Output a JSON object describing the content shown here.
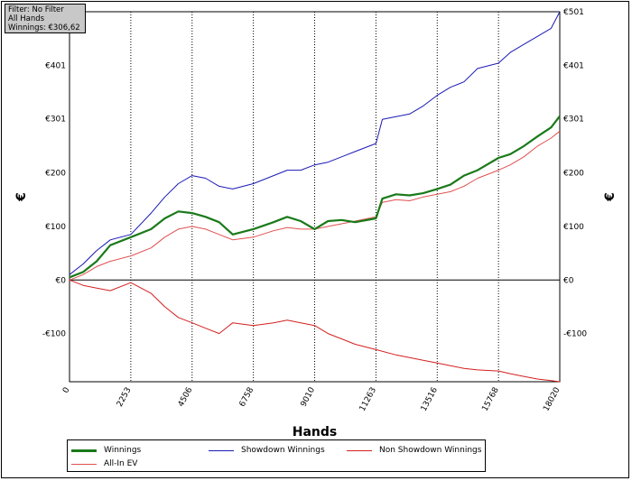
{
  "info_box": {
    "filter": "Filter: No Filter",
    "hands": "All Hands",
    "winnings": "Winnings: €306,62"
  },
  "chart_data": {
    "type": "line",
    "xlabel": "Hands",
    "ylabel_left": "€",
    "ylabel_right": "€",
    "xlim": [
      0,
      18020
    ],
    "ylim": [
      -190,
      501
    ],
    "x_ticks": [
      0,
      2253,
      4506,
      6758,
      9010,
      11263,
      13516,
      15768,
      18020
    ],
    "y_ticks": [
      {
        "value": 0,
        "label": "€0"
      },
      {
        "value": 100,
        "label": "€100"
      },
      {
        "value": 200,
        "label": "€200"
      },
      {
        "value": 301,
        "label": "€301"
      },
      {
        "value": 401,
        "label": "€401"
      },
      {
        "value": 501,
        "label": "€501"
      },
      {
        "value": -100,
        "label": "-€100"
      }
    ],
    "grid": "vertical dotted",
    "zero_line": true,
    "legend_position": "bottom",
    "series": [
      {
        "name": "Winnings",
        "color": "#1a7a1a",
        "width": 2.2,
        "x": [
          0,
          500,
          1000,
          1500,
          2253,
          3000,
          3500,
          4000,
          4506,
          5000,
          5500,
          6000,
          6758,
          7500,
          8000,
          8500,
          9010,
          9500,
          10000,
          10500,
          11263,
          11500,
          12000,
          12500,
          13000,
          13516,
          14000,
          14500,
          15000,
          15768,
          16200,
          16700,
          17200,
          17700,
          18020
        ],
        "y": [
          5,
          15,
          35,
          65,
          80,
          95,
          115,
          128,
          125,
          118,
          108,
          85,
          95,
          108,
          118,
          110,
          95,
          110,
          112,
          108,
          115,
          152,
          160,
          158,
          162,
          170,
          178,
          195,
          205,
          228,
          235,
          250,
          268,
          285,
          306
        ]
      },
      {
        "name": "Showdown Winnings",
        "color": "#1a1ab4",
        "width": 1,
        "x": [
          0,
          500,
          1000,
          1500,
          2253,
          3000,
          3500,
          4000,
          4506,
          5000,
          5500,
          6000,
          6758,
          7500,
          8000,
          8500,
          9010,
          9500,
          10000,
          10500,
          11263,
          11500,
          12000,
          12500,
          13000,
          13516,
          14000,
          14500,
          15000,
          15768,
          16200,
          16700,
          17200,
          17700,
          18020
        ],
        "y": [
          10,
          30,
          55,
          75,
          85,
          125,
          155,
          180,
          195,
          190,
          175,
          170,
          180,
          195,
          205,
          205,
          215,
          220,
          230,
          240,
          255,
          300,
          305,
          310,
          325,
          345,
          360,
          370,
          395,
          405,
          425,
          440,
          455,
          470,
          501
        ]
      },
      {
        "name": "Non Showdown Winnings",
        "color": "#d42020",
        "width": 1,
        "x": [
          0,
          500,
          1000,
          1500,
          2253,
          3000,
          3500,
          4000,
          4506,
          5000,
          5500,
          6000,
          6758,
          7500,
          8000,
          8500,
          9010,
          9500,
          10000,
          10500,
          11263,
          12000,
          13000,
          13516,
          14000,
          14500,
          15000,
          15768,
          16200,
          16700,
          17200,
          17700,
          18020
        ],
        "y": [
          0,
          -10,
          -15,
          -20,
          -5,
          -25,
          -50,
          -70,
          -80,
          -90,
          -100,
          -80,
          -85,
          -80,
          -75,
          -80,
          -85,
          -100,
          -110,
          -120,
          -130,
          -140,
          -150,
          -155,
          -160,
          -165,
          -168,
          -170,
          -175,
          -180,
          -185,
          -188,
          -190
        ]
      },
      {
        "name": "All-In EV",
        "color": "#e05050",
        "width": 1,
        "x": [
          0,
          500,
          1000,
          1500,
          2253,
          3000,
          3500,
          4000,
          4506,
          5000,
          5500,
          6000,
          6758,
          7500,
          8000,
          8500,
          9010,
          9500,
          10000,
          10500,
          11263,
          11500,
          12000,
          12500,
          13000,
          13516,
          14000,
          14500,
          15000,
          15768,
          16200,
          16700,
          17200,
          17700,
          18020
        ],
        "y": [
          0,
          10,
          25,
          35,
          45,
          60,
          80,
          95,
          100,
          95,
          85,
          75,
          80,
          92,
          98,
          95,
          95,
          100,
          105,
          110,
          118,
          145,
          150,
          148,
          155,
          160,
          165,
          175,
          190,
          205,
          215,
          230,
          250,
          265,
          278
        ]
      }
    ]
  },
  "legend": {
    "items": [
      {
        "label": "Winnings",
        "color": "#1a7a1a"
      },
      {
        "label": "Showdown Winnings",
        "color": "#1a1ab4"
      },
      {
        "label": "Non Showdown Winnings",
        "color": "#d42020"
      },
      {
        "label": "All-In EV",
        "color": "#e05050"
      }
    ]
  }
}
